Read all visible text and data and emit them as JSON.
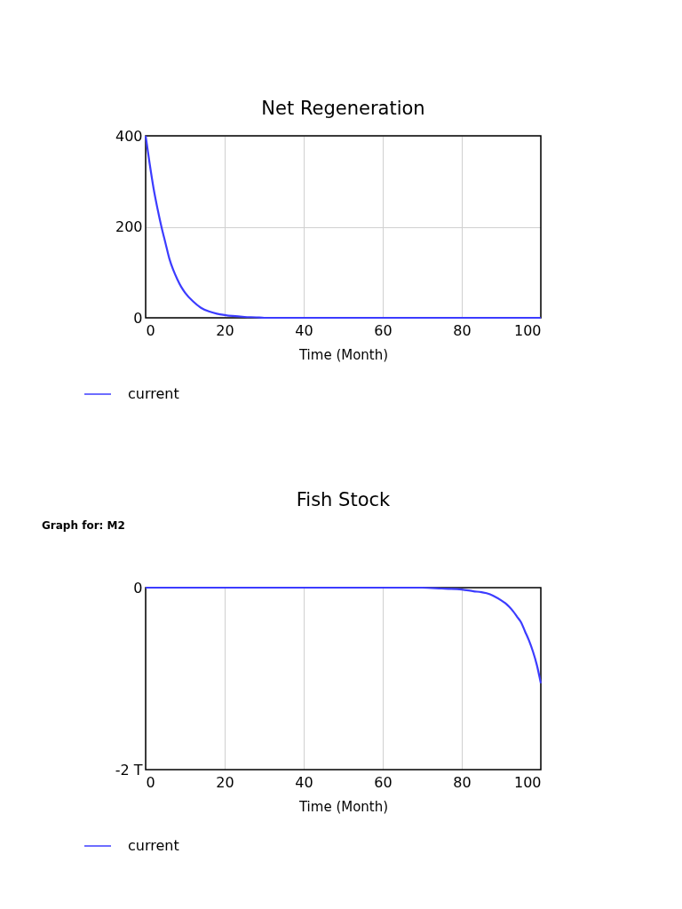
{
  "chart_data": [
    {
      "type": "line",
      "title": "Net Regeneration",
      "xlabel": "Time (Month)",
      "x": [
        0,
        1,
        2,
        3,
        4,
        5,
        6,
        7,
        8,
        9,
        10,
        12,
        14,
        16,
        18,
        20,
        22,
        25,
        28,
        30,
        35,
        40,
        50,
        60,
        70,
        80,
        90,
        100
      ],
      "series": [
        {
          "name": "current",
          "color": "#3c3cff",
          "values": [
            400,
            340,
            285,
            240,
            200,
            165,
            130,
            105,
            85,
            68,
            55,
            36,
            22,
            14,
            9,
            6,
            4,
            2,
            1,
            0,
            0,
            0,
            0,
            0,
            0,
            0,
            0,
            0
          ]
        }
      ],
      "xlim": [
        0,
        100
      ],
      "xticks": [
        0,
        20,
        40,
        60,
        80,
        100
      ],
      "ylim": [
        0,
        400
      ],
      "yticks": [
        0,
        200,
        400
      ],
      "grid": true,
      "legend": "bottom left"
    },
    {
      "type": "line",
      "title": "Fish Stock",
      "xlabel": "Time (Month)",
      "annotations": [
        "Graph for: M2"
      ],
      "x": [
        0,
        20,
        40,
        60,
        70,
        75,
        80,
        83,
        85,
        87,
        88,
        90,
        91,
        92,
        93,
        94,
        95,
        96,
        97,
        98,
        99,
        100
      ],
      "series": [
        {
          "name": "current",
          "color": "#3c3cff",
          "values": [
            0,
            0,
            0,
            0,
            0,
            -0.01,
            -0.02,
            -0.04,
            -0.05,
            -0.07,
            -0.09,
            -0.14,
            -0.17,
            -0.21,
            -0.26,
            -0.32,
            -0.38,
            -0.48,
            -0.58,
            -0.7,
            -0.85,
            -1.05
          ]
        }
      ],
      "xlim": [
        0,
        100
      ],
      "xticks": [
        0,
        20,
        40,
        60,
        80,
        100
      ],
      "ylim": [
        -2,
        0
      ],
      "yticks": [
        0,
        {
          "value": -2,
          "label": "-2 T"
        }
      ],
      "grid": "x",
      "legend": "bottom left"
    }
  ]
}
